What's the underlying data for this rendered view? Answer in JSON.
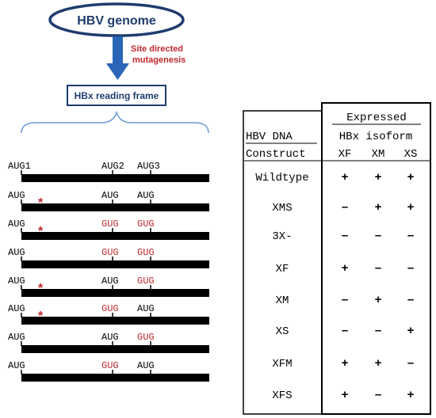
{
  "header": {
    "genome_label": "HBV genome",
    "mutagenesis_label_line1": "Site directed",
    "mutagenesis_label_line2": "mutagenesis",
    "reading_frame_label": "HBx reading frame"
  },
  "constructs": [
    {
      "codon1": "AUG1",
      "codon2": "AUG2",
      "codon3": "AUG3",
      "mut1": false,
      "mut2": false,
      "mut3": false,
      "star": false
    },
    {
      "codon1": "AUG",
      "codon2": "AUG",
      "codon3": "AUG",
      "mut1": false,
      "mut2": false,
      "mut3": false,
      "star": true
    },
    {
      "codon1": "AUG",
      "codon2": "GUG",
      "codon3": "GUG",
      "mut1": false,
      "mut2": true,
      "mut3": true,
      "star": true
    },
    {
      "codon1": "AUG",
      "codon2": "GUG",
      "codon3": "GUG",
      "mut1": false,
      "mut2": true,
      "mut3": true,
      "star": false
    },
    {
      "codon1": "AUG",
      "codon2": "AUG",
      "codon3": "GUG",
      "mut1": false,
      "mut2": false,
      "mut3": true,
      "star": true
    },
    {
      "codon1": "AUG",
      "codon2": "GUG",
      "codon3": "AUG",
      "mut1": false,
      "mut2": true,
      "mut3": false,
      "star": true
    },
    {
      "codon1": "AUG",
      "codon2": "AUG",
      "codon3": "GUG",
      "mut1": false,
      "mut2": false,
      "mut3": true,
      "star": false
    },
    {
      "codon1": "AUG",
      "codon2": "GUG",
      "codon3": "AUG",
      "mut1": false,
      "mut2": true,
      "mut3": false,
      "star": false
    }
  ],
  "table": {
    "expressed_label": "Expressed",
    "isoform_label": "HBx isoform",
    "hbv_label": "HBV DNA",
    "construct_label": "Construct",
    "columns": [
      "XF",
      "XM",
      "XS"
    ],
    "rows": [
      {
        "name": "Wildtype",
        "values": [
          "+",
          "+",
          "+"
        ]
      },
      {
        "name": "XMS",
        "values": [
          "–",
          "+",
          "+"
        ]
      },
      {
        "name": "3X-",
        "values": [
          "–",
          "–",
          "–"
        ]
      },
      {
        "name": "XF",
        "values": [
          "+",
          "–",
          "–"
        ]
      },
      {
        "name": "XM",
        "values": [
          "–",
          "+",
          "–"
        ]
      },
      {
        "name": "XS",
        "values": [
          "–",
          "–",
          "+"
        ]
      },
      {
        "name": "XFM",
        "values": [
          "+",
          "+",
          "–"
        ]
      },
      {
        "name": "XFS",
        "values": [
          "+",
          "–",
          "+"
        ]
      }
    ]
  },
  "colors": {
    "navy": "#1f3c6e",
    "arrow_blue": "#2a66b8",
    "mutation_red": "#c0282d",
    "brace_blue": "#6b9bd2",
    "bar_black": "#000000"
  }
}
